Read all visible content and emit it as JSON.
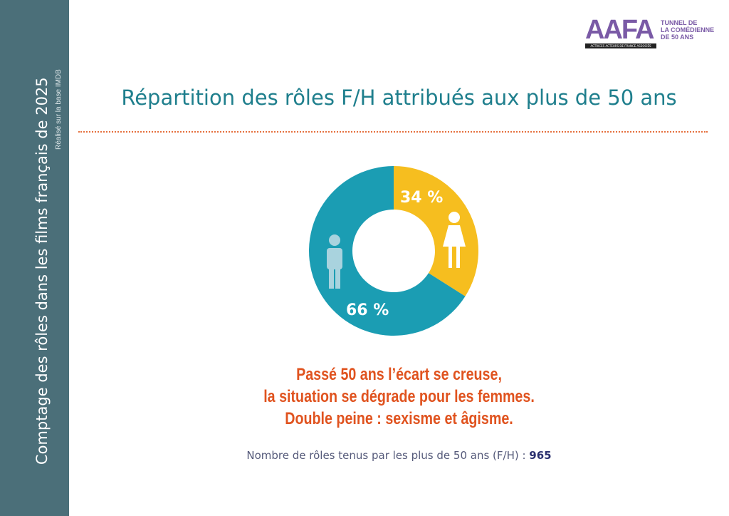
{
  "sidebar": {
    "title": "Comptage des rôles dans les films français de 2025",
    "subtitle": "Réalisé sur la base IMDB",
    "color": "#4b6f79"
  },
  "logo": {
    "letters": "AAFA",
    "band": "ACTRICES ACTEURS DE FRANCE ASSOCIÉS",
    "tunnel": [
      "TUNNEL DE",
      "LA COMÉDIENNE",
      "DE 50 ANS"
    ]
  },
  "chart_data": {
    "type": "pie",
    "donut": true,
    "title": "Répartition des rôles F/H attribués aux plus de 50 ans",
    "categories": [
      "F",
      "H"
    ],
    "values": [
      34,
      66
    ],
    "labels": [
      "34 %",
      "66 %"
    ],
    "colors": [
      "#f6be1f",
      "#1b9db3"
    ],
    "icons": [
      "female-icon",
      "male-icon"
    ]
  },
  "headline": [
    "Passé 50 ans l’écart se creuse,",
    "la situation se dégrade pour les femmes.",
    "Double peine : sexisme et âgisme."
  ],
  "footer": {
    "text": "Nombre de rôles tenus par les plus de 50 ans (F/H) : ",
    "count": "965"
  }
}
